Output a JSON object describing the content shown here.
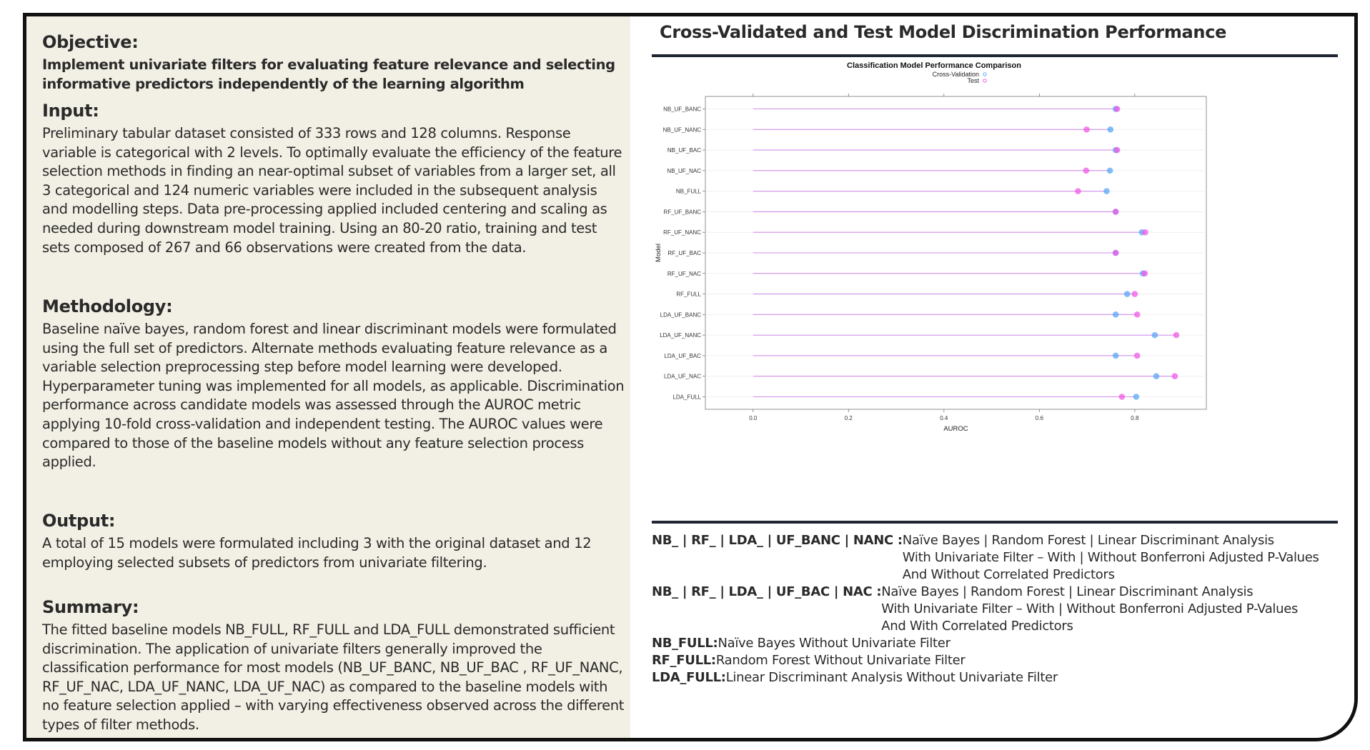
{
  "left_panel": {
    "sections": [
      {
        "heading": "Objective:",
        "body": "Implement univariate filters for evaluating feature relevance and selecting informative predictors independently of the learning algorithm",
        "bold_body": true
      },
      {
        "heading": "Input:",
        "body": "Preliminary tabular dataset consisted of 333 rows and 128 columns. Response variable is categorical with 2 levels. To optimally evaluate the efficiency of the feature selection methods in finding an near-optimal subset of variables from a larger set, all 3 categorical and 124 numeric variables were included in the subsequent analysis and modelling steps. Data pre-processing applied included centering and scaling as needed during downstream model training. Using an 80-20 ratio, training and test sets composed of 267 and 66 observations were created from the data.",
        "bold_body": false
      },
      {
        "heading": "Methodology:",
        "body": "Baseline naïve bayes, random forest and linear discriminant models were formulated using the full set of predictors. Alternate methods evaluating feature relevance as a variable selection preprocessing step before model learning were developed. Hyperparameter tuning was implemented for all models, as applicable. Discrimination performance across candidate models was assessed through the AUROC metric applying 10-fold cross-validation and independent testing. The AUROC values were compared to those of the baseline models without any feature selection process applied.",
        "bold_body": false
      },
      {
        "heading": "Output:",
        "body": "A total of 15 models were formulated including 3 with the original dataset and 12 employing selected subsets of predictors from univariate filtering.",
        "bold_body": false
      },
      {
        "heading": "Summary:",
        "body": "The fitted baseline models NB_FULL, RF_FULL and LDA_FULL demonstrated sufficient discrimination. The application of univariate filters generally improved the classification performance for most models (NB_UF_BANC, NB_UF_BAC , RF_UF_NANC, RF_UF_NAC, LDA_UF_NANC, LDA_UF_NAC) as compared to the baseline models with no feature selection applied – with varying effectiveness observed across the different types of filter methods.",
        "bold_body": false
      }
    ]
  },
  "right_panel": {
    "title": "Cross-Validated and Test Model Discrimination Performance",
    "legend_rows": [
      {
        "key": "NB_ | RF_ | LDA_ | UF_BANC | NANC : ",
        "desc": "Naïve Bayes | Random Forest | Linear Discriminant Analysis\nWith Univariate Filter – With | Without Bonferroni Adjusted P-Values\nAnd Without Correlated Predictors"
      },
      {
        "key": "NB_ | RF_ | LDA_ | UF_BAC | NAC : ",
        "desc": "Naïve Bayes | Random Forest | Linear Discriminant Analysis\nWith Univariate Filter – With | Without Bonferroni Adjusted P-Values\nAnd With Correlated Predictors"
      },
      {
        "key": "NB_FULL: ",
        "desc": "Naïve Bayes Without Univariate Filter"
      },
      {
        "key": "RF_FULL: ",
        "desc": "Random Forest Without Univariate Filter"
      },
      {
        "key": "LDA_FULL: ",
        "desc": "Linear Discriminant Analysis Without Univariate Filter"
      }
    ]
  },
  "chart_data": {
    "type": "scatter",
    "title": "Classification Model Performance Comparison",
    "xlabel": "AUROC",
    "ylabel": "Model",
    "xlim": [
      -0.1,
      0.95
    ],
    "xticks": [
      0.0,
      0.2,
      0.4,
      0.6,
      0.8
    ],
    "xtick_labels": [
      "0.0",
      "0.2",
      "0.4",
      "0.6",
      "0.8"
    ],
    "legend_position": "top-center",
    "categories": [
      "NB_UF_BANC",
      "NB_UF_NANC",
      "NB_UF_BAC",
      "NB_UF_NAC",
      "NB_FULL",
      "RF_UF_BANC",
      "RF_UF_NANC",
      "RF_UF_BAC",
      "RF_UF_NAC",
      "RF_FULL",
      "LDA_UF_BANC",
      "LDA_UF_NANC",
      "LDA_UF_BAC",
      "LDA_UF_NAC",
      "LDA_FULL"
    ],
    "series": [
      {
        "name": "Cross-Validation",
        "color": "#5aa7f5",
        "values": [
          0.76,
          0.749,
          0.76,
          0.748,
          0.741,
          0.76,
          0.815,
          0.76,
          0.817,
          0.784,
          0.76,
          0.842,
          0.76,
          0.845,
          0.803
        ]
      },
      {
        "name": "Test",
        "color": "#f05ae6",
        "values": [
          0.763,
          0.699,
          0.763,
          0.698,
          0.681,
          0.76,
          0.822,
          0.76,
          0.821,
          0.8,
          0.805,
          0.887,
          0.805,
          0.884,
          0.773
        ]
      }
    ],
    "line_color": "#d08ee8",
    "grid": true
  }
}
